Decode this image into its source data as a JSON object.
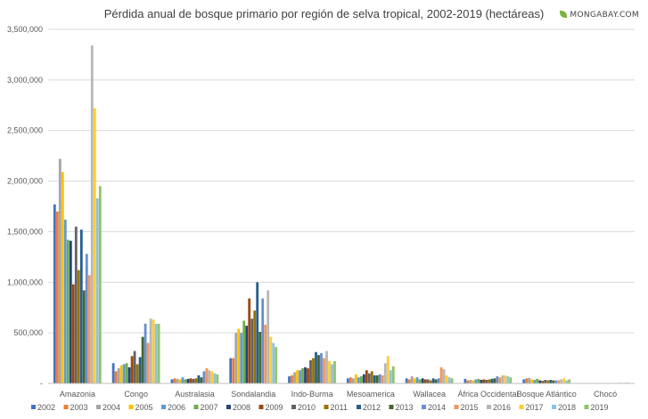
{
  "header": {
    "title": "Pérdida anual de bosque primario por región de selva tropical, 2002-2019 (hectáreas)",
    "brand": "MONGABAY.COM"
  },
  "chart_data": {
    "type": "bar",
    "title": "Pérdida anual de bosque primario por región de selva tropical, 2002-2019 (hectáreas)",
    "xlabel": "",
    "ylabel": "",
    "ylim": [
      0,
      3500000
    ],
    "yticks": [
      0,
      500000,
      1000000,
      1500000,
      2000000,
      2500000,
      3000000,
      3500000
    ],
    "ytick_labels": [
      "-",
      "500,000",
      "1,000,000",
      "1,500,000",
      "2,000,000",
      "2,500,000",
      "3,000,000",
      "3,500,000"
    ],
    "grid": true,
    "legend": "bottom",
    "categories": [
      "Amazonia",
      "Congo",
      "Australasia",
      "Sondalandia",
      "Indo-Burma",
      "Mesoamerica",
      "Wallacea",
      "África Occidental",
      "Bosque Atlántico",
      "Chocó"
    ],
    "series": [
      {
        "name": "2002",
        "color": "#4472c4",
        "values": [
          1770000,
          200000,
          40000,
          250000,
          70000,
          50000,
          50000,
          45000,
          40000,
          4000
        ]
      },
      {
        "name": "2003",
        "color": "#ed7d31",
        "values": [
          1700000,
          120000,
          50000,
          250000,
          80000,
          60000,
          40000,
          30000,
          50000,
          4000
        ]
      },
      {
        "name": "2004",
        "color": "#a5a5a5",
        "values": [
          2220000,
          150000,
          45000,
          500000,
          110000,
          50000,
          70000,
          35000,
          55000,
          4000
        ]
      },
      {
        "name": "2005",
        "color": "#ffc000",
        "values": [
          2090000,
          180000,
          40000,
          540000,
          130000,
          90000,
          50000,
          30000,
          40000,
          3000
        ]
      },
      {
        "name": "2006",
        "color": "#5b9bd5",
        "values": [
          1620000,
          190000,
          60000,
          500000,
          130000,
          60000,
          60000,
          40000,
          35000,
          4000
        ]
      },
      {
        "name": "2007",
        "color": "#70ad47",
        "values": [
          1420000,
          200000,
          40000,
          620000,
          150000,
          70000,
          40000,
          45000,
          45000,
          3000
        ]
      },
      {
        "name": "2008",
        "color": "#264478",
        "values": [
          1410000,
          160000,
          45000,
          570000,
          160000,
          90000,
          50000,
          35000,
          30000,
          4000
        ]
      },
      {
        "name": "2009",
        "color": "#9e480e",
        "values": [
          980000,
          270000,
          50000,
          840000,
          150000,
          130000,
          40000,
          40000,
          25000,
          3000
        ]
      },
      {
        "name": "2010",
        "color": "#636363",
        "values": [
          1550000,
          320000,
          45000,
          640000,
          230000,
          100000,
          40000,
          35000,
          35000,
          4000
        ]
      },
      {
        "name": "2011",
        "color": "#997300",
        "values": [
          1120000,
          190000,
          50000,
          720000,
          250000,
          120000,
          30000,
          40000,
          30000,
          3000
        ]
      },
      {
        "name": "2012",
        "color": "#255e91",
        "values": [
          1520000,
          260000,
          80000,
          1000000,
          310000,
          80000,
          50000,
          45000,
          35000,
          4000
        ]
      },
      {
        "name": "2013",
        "color": "#43682b",
        "values": [
          920000,
          460000,
          60000,
          510000,
          280000,
          80000,
          40000,
          50000,
          30000,
          3000
        ]
      },
      {
        "name": "2014",
        "color": "#698ed0",
        "values": [
          1280000,
          590000,
          120000,
          840000,
          300000,
          90000,
          50000,
          70000,
          30000,
          4000
        ]
      },
      {
        "name": "2015",
        "color": "#f1975a",
        "values": [
          1070000,
          400000,
          150000,
          580000,
          250000,
          80000,
          160000,
          60000,
          30000,
          5000
        ]
      },
      {
        "name": "2016",
        "color": "#b7b7b7",
        "values": [
          3340000,
          640000,
          130000,
          920000,
          320000,
          200000,
          140000,
          80000,
          40000,
          6000
        ]
      },
      {
        "name": "2017",
        "color": "#ffcd33",
        "values": [
          2720000,
          630000,
          120000,
          460000,
          220000,
          270000,
          80000,
          80000,
          50000,
          5000
        ]
      },
      {
        "name": "2018",
        "color": "#8cc1e8",
        "values": [
          1830000,
          590000,
          100000,
          400000,
          190000,
          130000,
          60000,
          70000,
          30000,
          6000
        ]
      },
      {
        "name": "2019",
        "color": "#8fc567",
        "values": [
          1950000,
          590000,
          90000,
          360000,
          220000,
          170000,
          50000,
          60000,
          40000,
          7000
        ]
      }
    ]
  }
}
